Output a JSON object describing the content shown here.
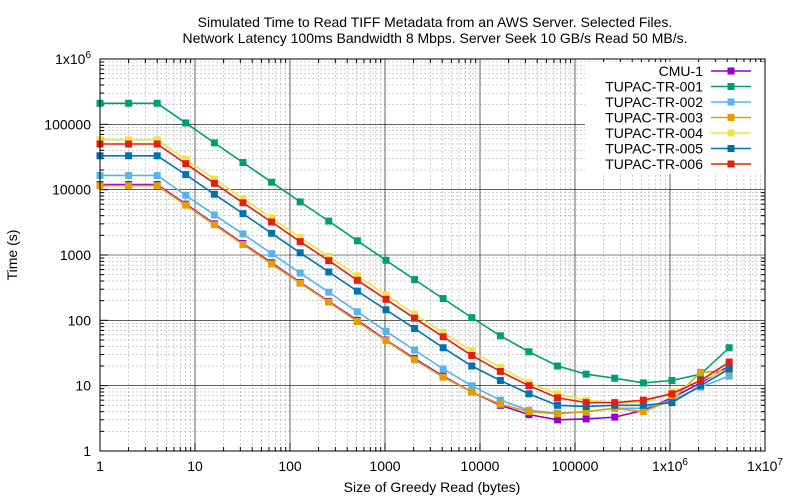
{
  "chart_data": {
    "type": "line",
    "title": "Simulated Time to Read TIFF Metadata from an AWS Server. Selected Files.",
    "subtitle": "Network Latency 100ms Bandwidth 8 Mbps. Server Seek 10 GB/s Read 50 MB/s.",
    "xlabel": "Size of Greedy Read (bytes)",
    "ylabel": "Time (s)",
    "xscale": "log",
    "yscale": "log",
    "xlim": [
      1,
      10000000
    ],
    "ylim": [
      1,
      1000000
    ],
    "grid": true,
    "legend_position": "top-right",
    "x_ticks": [
      {
        "value": 1,
        "label": "1"
      },
      {
        "value": 10,
        "label": "10"
      },
      {
        "value": 100,
        "label": "100"
      },
      {
        "value": 1000,
        "label": "1000"
      },
      {
        "value": 10000,
        "label": "10000"
      },
      {
        "value": 100000,
        "label": "100000"
      },
      {
        "value": 1000000,
        "label": "1x10",
        "sup": "6"
      },
      {
        "value": 10000000,
        "label": "1x10",
        "sup": "7"
      }
    ],
    "y_ticks": [
      {
        "value": 1,
        "label": "1"
      },
      {
        "value": 10,
        "label": "10"
      },
      {
        "value": 100,
        "label": "100"
      },
      {
        "value": 1000,
        "label": "1000"
      },
      {
        "value": 10000,
        "label": "10000"
      },
      {
        "value": 100000,
        "label": "100000"
      },
      {
        "value": 1000000,
        "label": "1x10",
        "sup": "6"
      }
    ],
    "x": [
      1,
      2,
      4,
      8,
      16,
      32,
      64,
      128,
      256,
      512,
      1024,
      2048,
      4096,
      8192,
      16384,
      32768,
      65536,
      131072,
      262144,
      524288,
      1048576,
      2097152,
      4194304
    ],
    "series": [
      {
        "name": "CMU-1",
        "color": "#9400d3",
        "values": [
          12000,
          12000,
          12000,
          6000,
          3000,
          1500,
          760,
          380,
          195,
          100,
          50,
          26,
          14,
          8,
          5,
          3.6,
          3.0,
          3.1,
          3.3,
          4.2,
          6.5,
          11,
          20
        ]
      },
      {
        "name": "TUPAC-TR-001",
        "color": "#009e73",
        "values": [
          210000,
          210000,
          210000,
          105000,
          52000,
          26000,
          13000,
          6500,
          3300,
          1650,
          830,
          420,
          215,
          110,
          58,
          33,
          20,
          15,
          13,
          11,
          12,
          15,
          38
        ]
      },
      {
        "name": "TUPAC-TR-002",
        "color": "#56b4e9",
        "values": [
          16500,
          16500,
          16500,
          8200,
          4100,
          2100,
          1050,
          530,
          270,
          135,
          68,
          35,
          18,
          10,
          6,
          4.2,
          3.8,
          4.0,
          4.5,
          4.5,
          6,
          9.5,
          14
        ]
      },
      {
        "name": "TUPAC-TR-003",
        "color": "#e69f00",
        "values": [
          11500,
          11500,
          11500,
          5800,
          2900,
          1450,
          730,
          370,
          190,
          96,
          49,
          25,
          13.5,
          8,
          5.2,
          4.0,
          3.7,
          4.0,
          4.5,
          4.0,
          6,
          16,
          17
        ]
      },
      {
        "name": "TUPAC-TR-004",
        "color": "#f0e442",
        "values": [
          58000,
          58000,
          58000,
          29000,
          14500,
          7300,
          3700,
          1850,
          950,
          480,
          245,
          125,
          65,
          34,
          19,
          11,
          7.5,
          6.0,
          5.5,
          5.5,
          8,
          12,
          18
        ]
      },
      {
        "name": "TUPAC-TR-005",
        "color": "#0072b2",
        "values": [
          33000,
          33000,
          33000,
          17000,
          8500,
          4300,
          2150,
          1080,
          550,
          280,
          145,
          75,
          38,
          20,
          12,
          7.5,
          5.0,
          4.8,
          5.0,
          5.0,
          5.5,
          10,
          18
        ]
      },
      {
        "name": "TUPAC-TR-006",
        "color": "#e51e10",
        "values": [
          50000,
          50000,
          50000,
          25000,
          12500,
          6300,
          3200,
          1600,
          820,
          410,
          210,
          108,
          56,
          29,
          16.5,
          10,
          6.5,
          5.5,
          5.5,
          6.0,
          7.5,
          12,
          23
        ]
      }
    ]
  }
}
